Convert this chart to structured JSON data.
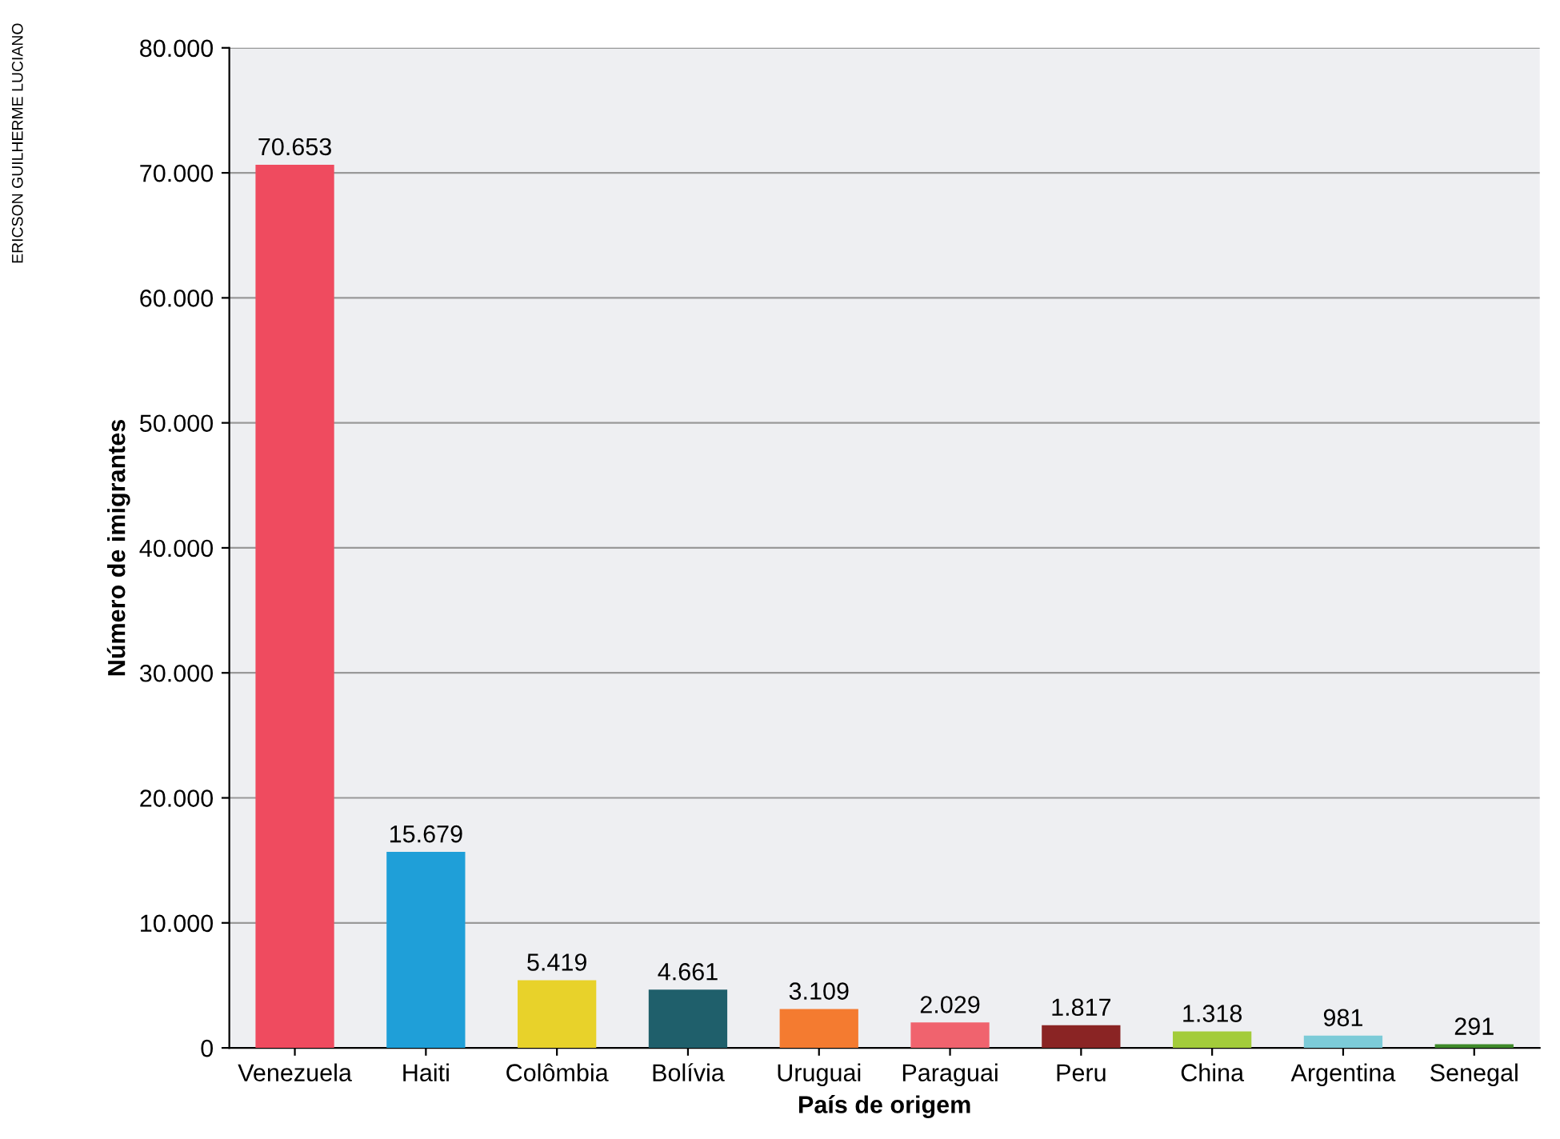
{
  "chart_data": {
    "type": "bar",
    "xlabel": "País de origem",
    "ylabel": "Número de imigrantes",
    "categories": [
      "Venezuela",
      "Haiti",
      "Colômbia",
      "Bolívia",
      "Uruguai",
      "Paraguai",
      "Peru",
      "China",
      "Argentina",
      "Senegal"
    ],
    "values": [
      70653,
      15679,
      5419,
      4661,
      3109,
      2029,
      1817,
      1318,
      981,
      291
    ],
    "value_labels": [
      "70.653",
      "15.679",
      "5.419",
      "4.661",
      "3.109",
      "2.029",
      "1.817",
      "1.318",
      "981",
      "291"
    ],
    "colors": [
      "#ef4b5f",
      "#1f9fd8",
      "#e8d22a",
      "#1f5f6b",
      "#f47b30",
      "#f0636e",
      "#8a2424",
      "#a3cc3a",
      "#7ccbd8",
      "#3f8a2a"
    ],
    "ylim": [
      0,
      80000
    ],
    "yticks": [
      {
        "value": 0,
        "label": "0"
      },
      {
        "value": 10000,
        "label": "10.000"
      },
      {
        "value": 20000,
        "label": "20.000"
      },
      {
        "value": 30000,
        "label": "30.000"
      },
      {
        "value": 40000,
        "label": "40.000"
      },
      {
        "value": 50000,
        "label": "50.000"
      },
      {
        "value": 60000,
        "label": "60.000"
      },
      {
        "value": 70000,
        "label": "70.000"
      },
      {
        "value": 80000,
        "label": "80.000"
      }
    ],
    "grid": "y",
    "annotations": [
      "ERICSON GUILHERME LUCIANO"
    ]
  }
}
